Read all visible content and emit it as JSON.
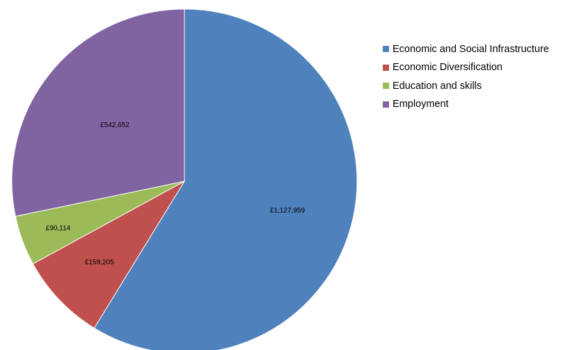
{
  "chart_data": {
    "type": "pie",
    "start": "top",
    "direction": "clockwise",
    "legend_position": "right",
    "slices": [
      {
        "name": "Economic and Social Infrastructure",
        "value": 1127959,
        "label": "£1,127,959",
        "color": "#4F81BD"
      },
      {
        "name": "Economic Diversification",
        "value": 159205,
        "label": "£159,205",
        "color": "#C0504D"
      },
      {
        "name": "Education and skills",
        "value": 90114,
        "label": "£90,114",
        "color": "#9BBB59"
      },
      {
        "name": "Employment",
        "value": 542652,
        "label": "£542,652",
        "color": "#8064A2"
      }
    ]
  }
}
